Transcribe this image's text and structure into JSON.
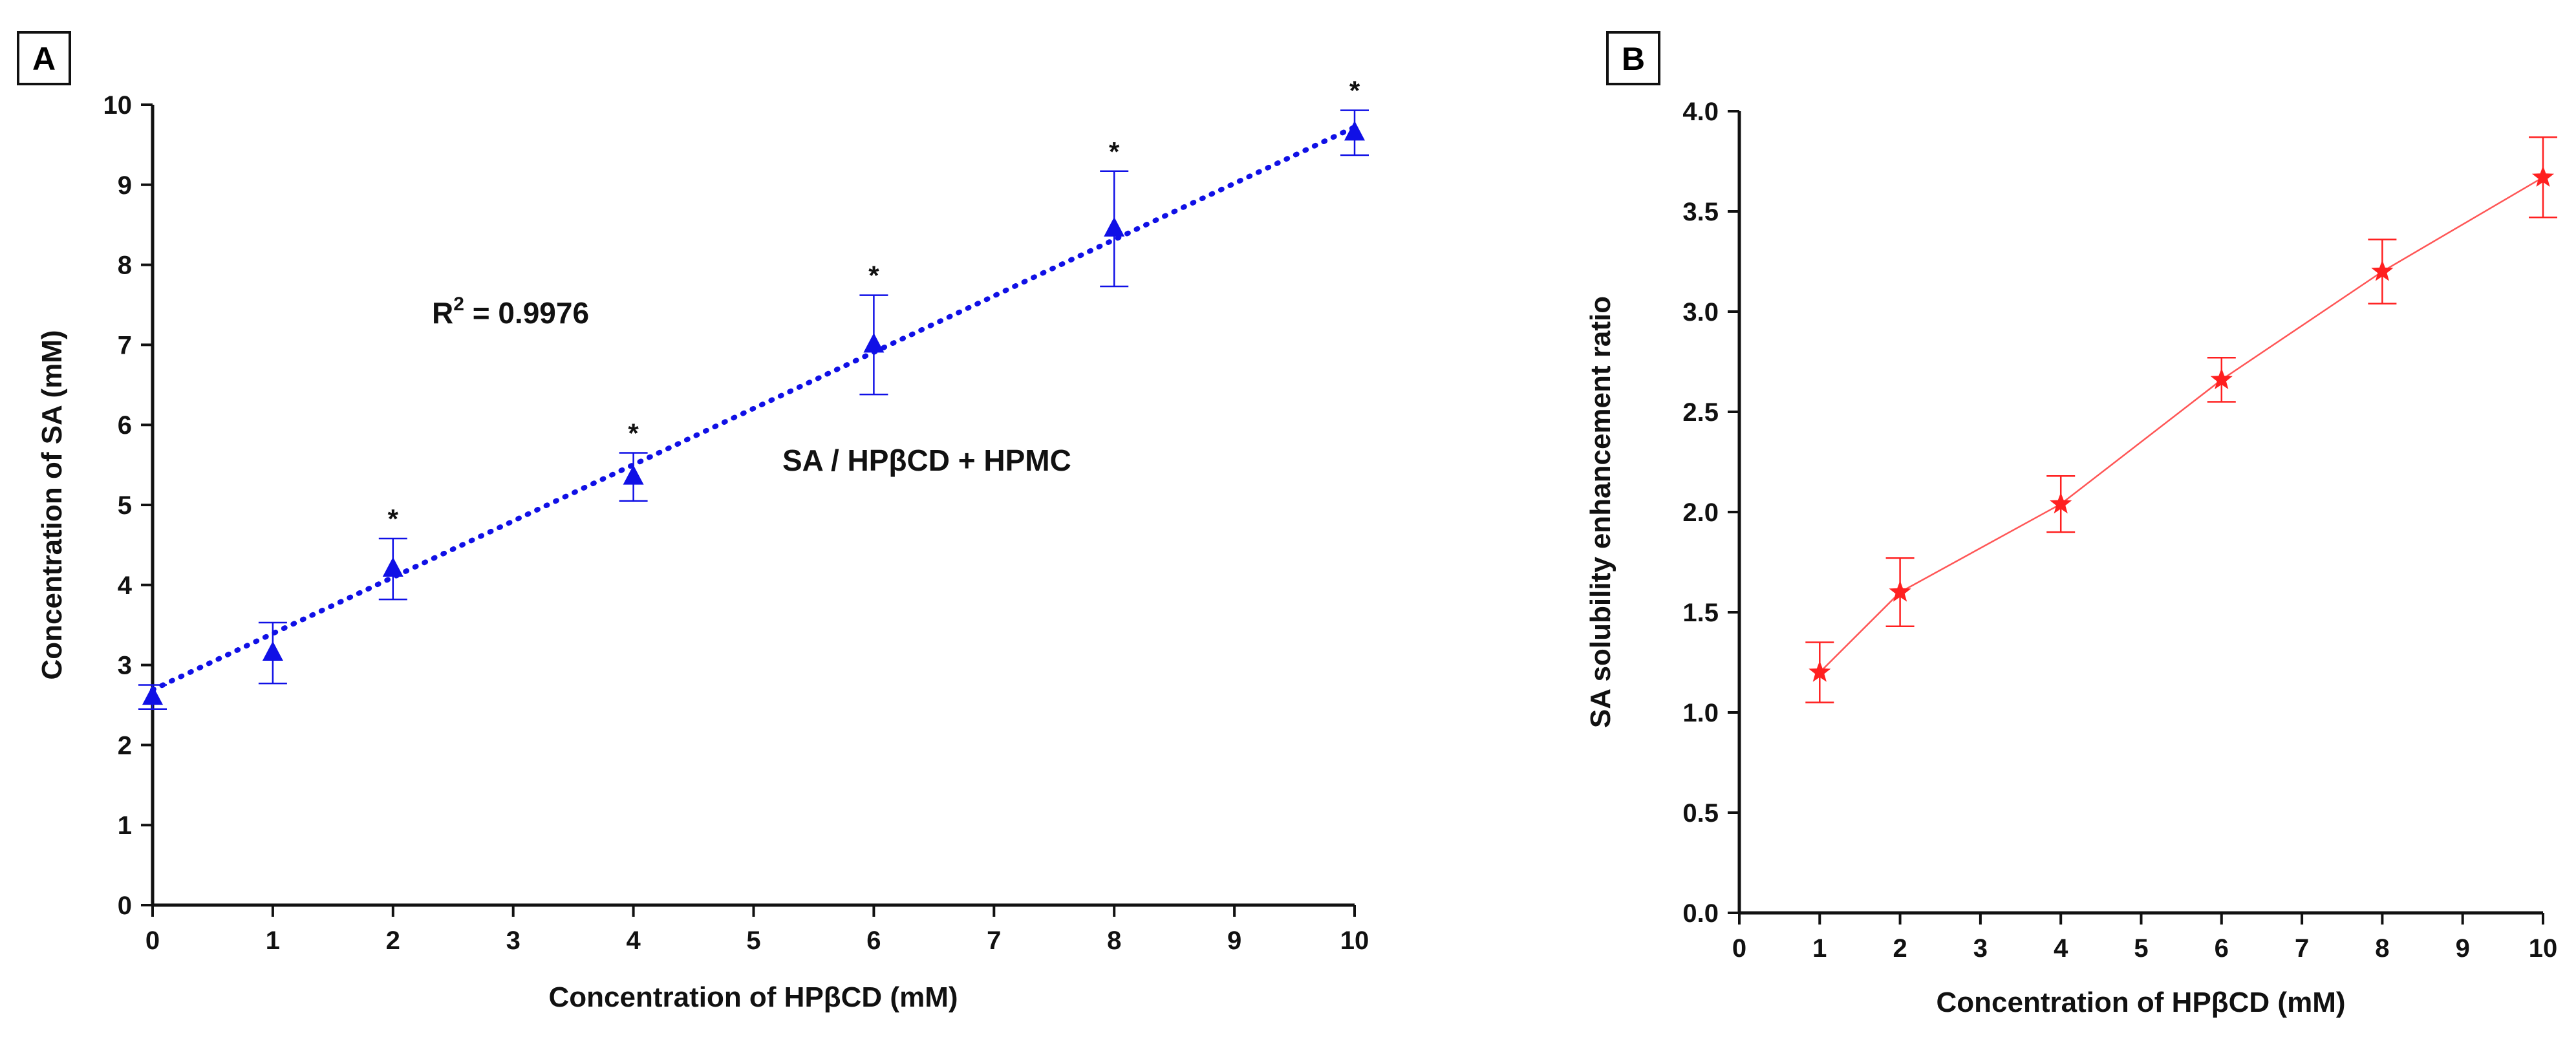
{
  "chart_data": [
    {
      "panel": "A",
      "type": "scatter",
      "title": "",
      "xlabel": "Concentration of HPβCD (mM)",
      "ylabel": "Concentration of SA (mM)",
      "xlim": [
        0,
        10
      ],
      "ylim": [
        0,
        10
      ],
      "xticks": [
        "0",
        "1",
        "2",
        "3",
        "4",
        "5",
        "6",
        "7",
        "8",
        "9",
        "10"
      ],
      "yticks": [
        "0",
        "1",
        "2",
        "3",
        "4",
        "5",
        "6",
        "7",
        "8",
        "9",
        "10"
      ],
      "series": [
        {
          "name": "SA / HPβCD + HPMC",
          "color": "#1010e6",
          "marker": "triangle",
          "x": [
            0,
            1,
            2,
            4,
            6,
            8,
            10
          ],
          "y": [
            2.6,
            3.15,
            4.2,
            5.35,
            7.0,
            8.45,
            9.65
          ],
          "err": [
            0.15,
            0.38,
            0.38,
            0.3,
            0.62,
            0.72,
            0.28
          ],
          "significant": [
            false,
            false,
            true,
            true,
            true,
            true,
            true
          ]
        }
      ],
      "trendline": {
        "style": "dotted",
        "x": [
          0,
          10
        ],
        "y": [
          2.69,
          9.72
        ]
      },
      "annotations": {
        "r2_prefix": "R",
        "r2_exp": "2",
        "r2_value": " = 0.9976",
        "series_label": "SA / HPβCD + HPMC",
        "sig_marker": "*"
      }
    },
    {
      "panel": "B",
      "type": "line",
      "title": "",
      "xlabel": "Concentration of HPβCD (mM)",
      "ylabel": "SA solubility enhancement ratio",
      "xlim": [
        0,
        10
      ],
      "ylim": [
        0,
        4
      ],
      "xticks": [
        "0",
        "1",
        "2",
        "3",
        "4",
        "5",
        "6",
        "7",
        "8",
        "9",
        "10"
      ],
      "yticks": [
        "0.0",
        "0.5",
        "1.0",
        "1.5",
        "2.0",
        "2.5",
        "3.0",
        "3.5",
        "4.0"
      ],
      "series": [
        {
          "name": "SA solubility enhancement ratio",
          "color": "#ff2020",
          "marker": "star",
          "x": [
            1,
            2,
            4,
            6,
            8,
            10
          ],
          "y": [
            1.2,
            1.6,
            2.04,
            2.66,
            3.2,
            3.67
          ],
          "err": [
            0.15,
            0.17,
            0.14,
            0.11,
            0.16,
            0.2
          ]
        }
      ]
    }
  ]
}
